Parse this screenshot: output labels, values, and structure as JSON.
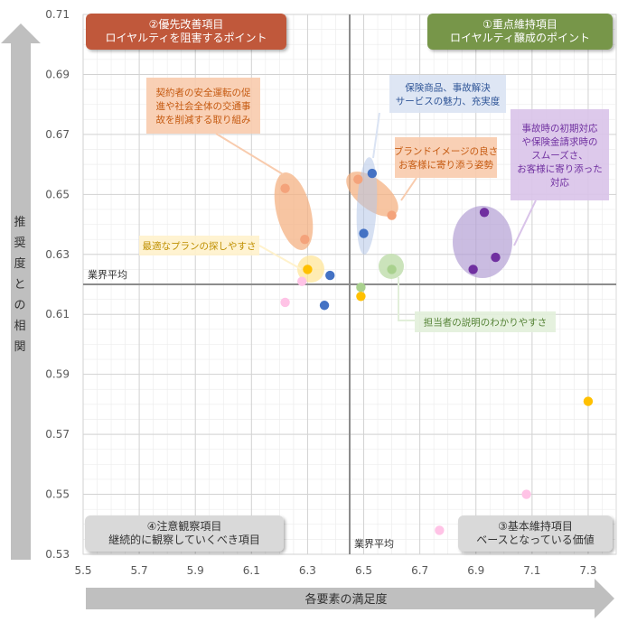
{
  "chart_data": {
    "type": "scatter",
    "title": "",
    "xlabel": "各要素の満足度",
    "ylabel": "推奨度との相関",
    "xlim": [
      5.5,
      7.4
    ],
    "ylim": [
      0.53,
      0.71
    ],
    "x_ticks": [
      "5.5",
      "5.7",
      "5.9",
      "6.1",
      "6.3",
      "6.5",
      "6.7",
      "6.9",
      "7.1",
      "7.3"
    ],
    "y_ticks": [
      "0.71",
      "0.69",
      "0.67",
      "0.65",
      "0.63",
      "0.61",
      "0.59",
      "0.57",
      "0.55",
      "0.53"
    ],
    "grid": true,
    "reference_lines": {
      "x": 6.45,
      "y": 0.62,
      "x_label": "業界平均",
      "y_label": "業界平均"
    },
    "quadrants": [
      {
        "id": "q2",
        "line1": "②優先改善項目",
        "line2": "ロイヤルティを阻害するポイント",
        "color": "#C0583A"
      },
      {
        "id": "q1",
        "line1": "①重点維持項目",
        "line2": "ロイヤルティ醸成のポイント",
        "color": "#77964A"
      },
      {
        "id": "q4",
        "line1": "④注意観察項目",
        "line2": "継続的に観察していくべき項目",
        "color": "#D9D9D9"
      },
      {
        "id": "q3",
        "line1": "③基本維持項目",
        "line2": "ベースとなっている価値",
        "color": "#D9D9D9"
      }
    ],
    "series": [
      {
        "name": "orange",
        "color": "#F4A37B",
        "points": [
          [
            6.22,
            0.652
          ],
          [
            6.29,
            0.635
          ],
          [
            6.48,
            0.655
          ],
          [
            6.6,
            0.643
          ]
        ]
      },
      {
        "name": "blue",
        "color": "#4472C4",
        "points": [
          [
            6.53,
            0.657
          ],
          [
            6.5,
            0.637
          ],
          [
            6.38,
            0.623
          ],
          [
            6.36,
            0.613
          ]
        ]
      },
      {
        "name": "purple",
        "color": "#7030A0",
        "points": [
          [
            6.93,
            0.644
          ],
          [
            6.97,
            0.629
          ],
          [
            6.89,
            0.625
          ]
        ]
      },
      {
        "name": "green",
        "color": "#A9D18E",
        "points": [
          [
            6.6,
            0.625
          ],
          [
            6.49,
            0.619
          ]
        ]
      },
      {
        "name": "yellow",
        "color": "#FFC000",
        "points": [
          [
            6.3,
            0.625
          ],
          [
            6.49,
            0.616
          ],
          [
            7.3,
            0.581
          ]
        ]
      },
      {
        "name": "pink",
        "color": "#FFC3E6",
        "points": [
          [
            6.22,
            0.614
          ],
          [
            6.28,
            0.621
          ],
          [
            6.77,
            0.538
          ],
          [
            7.08,
            0.55
          ]
        ]
      }
    ],
    "annotations": [
      {
        "id": "safety",
        "lines": [
          "契約者の安全運転の促",
          "進や社会全体の交通事",
          "故を削減する取り組み"
        ],
        "color": "#C55A11",
        "fill": "#F8CBAD"
      },
      {
        "id": "product",
        "lines": [
          "保険商品、事故解決",
          "サービスの魅力、充実度"
        ],
        "color": "#2F5597",
        "fill": "#DAE3F3"
      },
      {
        "id": "brand",
        "lines": [
          "ブランドイメージの良さ",
          "お客様に寄り添う姿勢"
        ],
        "color": "#C55A11",
        "fill": "#F8CBAD"
      },
      {
        "id": "accident",
        "lines": [
          "事故時の初期対応",
          "や保険金請求時の",
          "スムーズさ、",
          "お客様に寄り添った",
          "対応"
        ],
        "color": "#7030A0",
        "fill": "#D9C3E9"
      },
      {
        "id": "plan",
        "lines": [
          "最適なプランの探しやすさ"
        ],
        "color": "#BF8F00",
        "fill": "#FFF2CC"
      },
      {
        "id": "staff",
        "lines": [
          "担当者の説明のわかりやすさ"
        ],
        "color": "#548235",
        "fill": "#E2EFDA"
      }
    ]
  }
}
